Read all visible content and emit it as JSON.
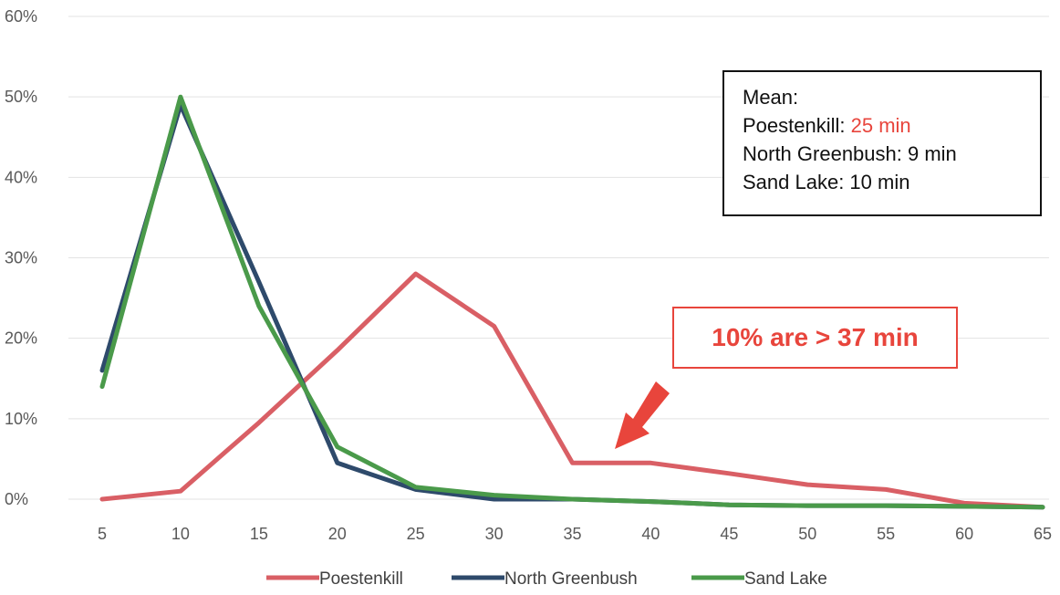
{
  "chart_data": {
    "type": "line",
    "x": [
      5,
      10,
      15,
      20,
      25,
      30,
      35,
      40,
      45,
      50,
      55,
      60,
      65
    ],
    "x_tick_labels": [
      "5",
      "10",
      "15",
      "20",
      "25",
      "30",
      "35",
      "40",
      "45",
      "50",
      "55",
      "60",
      "65"
    ],
    "y_tick_labels": [
      "0%",
      "10%",
      "20%",
      "30%",
      "40%",
      "50%",
      "60%"
    ],
    "ylim": [
      0,
      60
    ],
    "grid": true,
    "legend_position": "bottom",
    "series": [
      {
        "name": "Poestenkill",
        "color": "#d95f65",
        "values": [
          0,
          1,
          9.5,
          18.5,
          28,
          21.5,
          4.5,
          4.5,
          3.2,
          1.8,
          1.2,
          -0.5,
          -1
        ]
      },
      {
        "name": "North Greenbush",
        "color": "#2e4a6b",
        "values": [
          16,
          49,
          27,
          4.5,
          1.2,
          0,
          0,
          -0.3,
          -0.7,
          -0.8,
          -0.8,
          -0.9,
          -1
        ]
      },
      {
        "name": "Sand Lake",
        "color": "#4a9a4a",
        "values": [
          14,
          50,
          24,
          6.5,
          1.5,
          0.5,
          0,
          -0.3,
          -0.7,
          -0.8,
          -0.8,
          -0.9,
          -1
        ]
      }
    ]
  },
  "mean_box": {
    "title": "Mean:",
    "line1_label": "Poestenkill: ",
    "line1_value": "25 min",
    "line2": "North Greenbush: 9 min",
    "line3": "Sand Lake: 10 min"
  },
  "callout": {
    "text": "10% are > 37 min",
    "color": "#e8453c"
  }
}
